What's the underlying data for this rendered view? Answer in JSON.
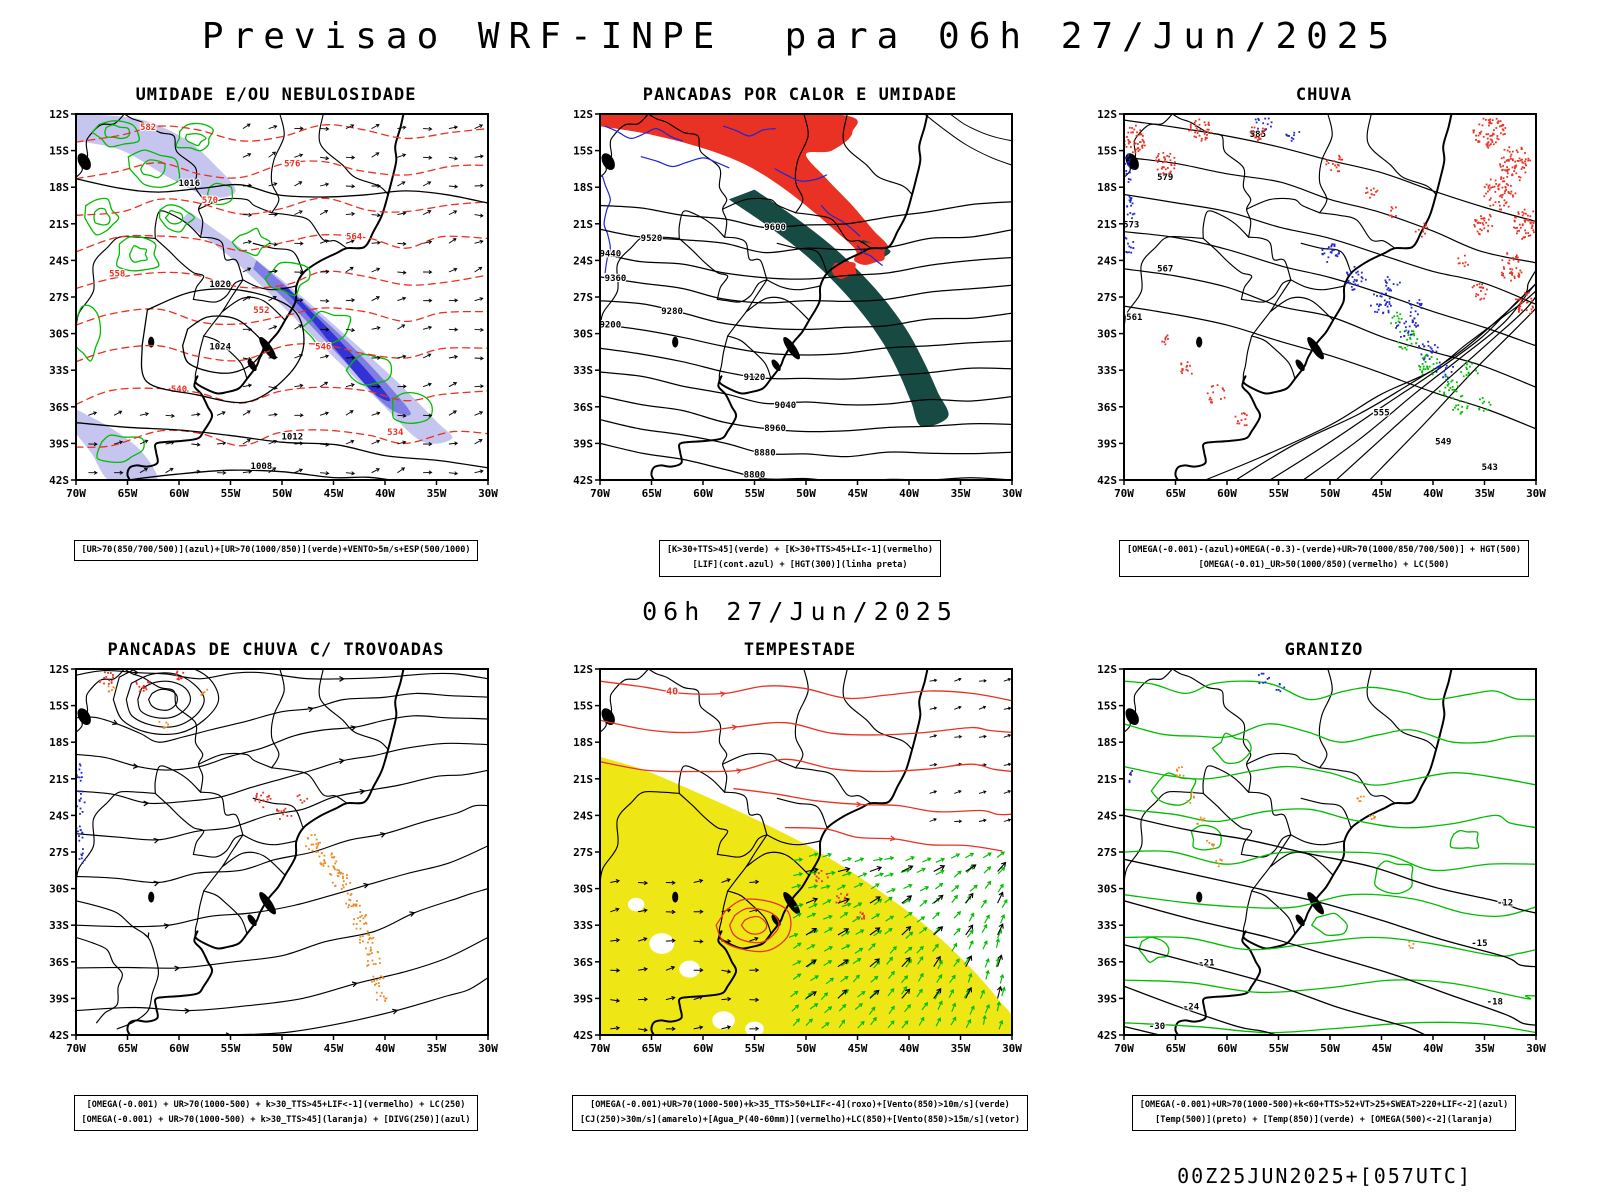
{
  "header": {
    "title": "Previsao WRF-INPE  para 06h 27/Jun/2025"
  },
  "center_caption": "06h 27/Jun/2025",
  "footer": {
    "runinfo": "00Z25JUN2025+[057UTC]"
  },
  "axes": {
    "lat_ticks": [
      "12S",
      "15S",
      "18S",
      "21S",
      "24S",
      "27S",
      "30S",
      "33S",
      "36S",
      "39S",
      "42S"
    ],
    "lon_ticks": [
      "70W",
      "65W",
      "60W",
      "55W",
      "50W",
      "45W",
      "40W",
      "35W",
      "30W"
    ]
  },
  "colors": {
    "green": "#00bd00",
    "red": "#e93223",
    "blue": "#2026d2",
    "light_blue": "#c5c5ef",
    "mid_blue": "#7d7de2",
    "dark_blue": "#3232d6",
    "teal": "#174a42",
    "orange": "#ee8822",
    "yellow": "#efe715",
    "black": "#000000"
  },
  "panels": [
    {
      "id": "umidade",
      "title": "UMIDADE E/OU NEBULOSIDADE",
      "legend1": "[UR>70(850/700/500)](azul)+[UR>70(1000/850)](verde)+VENTO>5m/s+ESP(500/1000)",
      "legend2": "",
      "contour_labels": {
        "red": [
          "582",
          "576",
          "570",
          "564",
          "558",
          "552",
          "546",
          "540",
          "534"
        ],
        "black": [
          "1016",
          "1020",
          "1024",
          "1012",
          "1008"
        ]
      }
    },
    {
      "id": "pancadas_calor",
      "title": "PANCADAS POR CALOR E UMIDADE",
      "legend1": "[K>30+TTS>45](verde) + [K>30+TTS>45+LI<-1](vermelho)",
      "legend2": "[LIF](cont.azul) + [HGT(300)](linha preta)",
      "contour_labels": {
        "black": [
          "9600",
          "9520",
          "9440",
          "9360",
          "9280",
          "9200",
          "9120",
          "9040",
          "8960",
          "8880",
          "8800"
        ]
      }
    },
    {
      "id": "chuva",
      "title": "CHUVA",
      "legend1": "[OMEGA(-0.001)-(azul)+OMEGA(-0.3)-(verde)+UR>70(1000/850/700/500)] + HGT(500)",
      "legend2": "[OMEGA(-0.01)_UR>50(1000/850)(vermelho) + LC(500)",
      "contour_labels": {
        "black": [
          "585",
          "579",
          "573",
          "567",
          "561",
          "555",
          "549",
          "543"
        ]
      }
    },
    {
      "id": "trovoadas",
      "title": "PANCADAS DE CHUVA C/ TROVOADAS",
      "legend1": "[OMEGA(-0.001) + UR>70(1000-500) + k>30_TTS>45+LIF<-1](vermelho) + LC(250)",
      "legend2": "[OMEGA(-0.001) + UR>70(1000-500) + k>30_TTS>45](laranja) + [DIVG(250)](azul)",
      "contour_labels": {
        "black": []
      }
    },
    {
      "id": "tempestade",
      "title": "TEMPESTADE",
      "legend1": "[OMEGA(-0.001)+UR>70(1000-500)+k>35_TTS>50+LIF<-4](roxo)+[Vento(850)>10m/s](verde)",
      "legend2": "[CJ(250)>30m/s](amarelo)+[Agua_P(40-60mm)](vermelho)+LC(850)+[Vento(850)>15m/s](vetor)",
      "contour_labels": {
        "red": [
          "40"
        ]
      }
    },
    {
      "id": "granizo",
      "title": "GRANIZO",
      "legend1": "[OMEGA(-0.001)+UR>70(1000-500)+k<60+TTS>52+VT>25+SWEAT>220+LIF<-2](azul)",
      "legend2": "[Temp(500)](preto) + [Temp(850)](verde) + [OMEGA(500)<-2](laranja)",
      "contour_labels": {
        "black": [
          "-12",
          "-15",
          "-18",
          "-21",
          "-24",
          "-30"
        ]
      }
    }
  ]
}
